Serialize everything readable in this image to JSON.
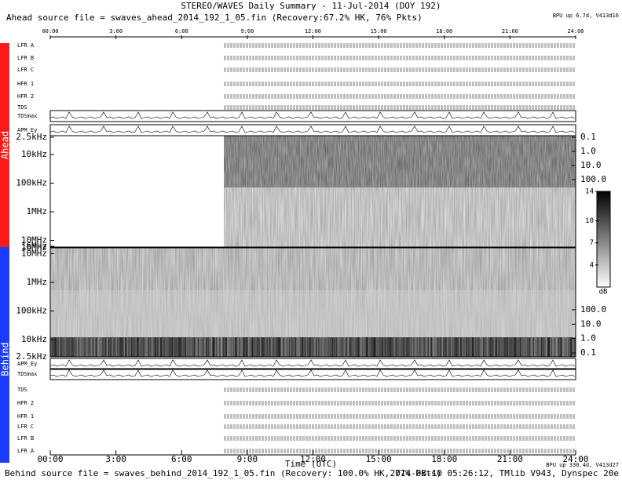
{
  "title": "STEREO/WAVES Daily Summary - 11-Jul-2014 (DOY 192)",
  "ahead_source": "Ahead source file = swaves_ahead_2014_192_1_05.fin (Recovery:67.2% HK, 76% Pkts)",
  "version_top": "BPU up 6.7d, V413d16",
  "behind_source": "Behind source file = swaves_behind_2014_192_1_05.fin (Recovery: 100.0% HK, 77% Pkts)",
  "version_bottom": "BPU up 330.4d, V413d27",
  "footer_right": "2014-08-10 05:26:12, TMlib V943, Dynspec 20e",
  "side_labels": {
    "ahead": "Ahead",
    "behind": "Behind"
  },
  "time_axis": {
    "label": "Time (UTC)",
    "xlim": [
      0,
      24
    ],
    "ticks": [
      {
        "value": 0,
        "label": "00:00"
      },
      {
        "value": 3,
        "label": "3:00"
      },
      {
        "value": 6,
        "label": "6:00"
      },
      {
        "value": 9,
        "label": "9:00"
      },
      {
        "value": 12,
        "label": "12:00"
      },
      {
        "value": 15,
        "label": "15:00"
      },
      {
        "value": 18,
        "label": "18:00"
      },
      {
        "value": 21,
        "label": "21:00"
      },
      {
        "value": 24,
        "label": "24:00"
      }
    ]
  },
  "ahead_rows": [
    "LFR A",
    "LFR B",
    "LFR C",
    "HFR 1",
    "HFR 2",
    "TDS",
    "TDSmax",
    "APM_Ey"
  ],
  "behind_rows": [
    "APM_Ey",
    "TDSmax",
    "TDS",
    "HFR 2",
    "HFR 1",
    "LFR C",
    "LFR B",
    "LFR A"
  ],
  "ahead_spectrogram": {
    "log": true,
    "ylim": [
      2500,
      16000000
    ],
    "yticks": [
      {
        "value": 2500,
        "label": "2.5kHz"
      },
      {
        "value": 10000,
        "label": "10kHz"
      },
      {
        "value": 100000,
        "label": "100kHz"
      },
      {
        "value": 1000000,
        "label": "1MHz"
      },
      {
        "value": 10000000,
        "label": "10MHz"
      },
      {
        "value": 16000000,
        "label": "16MHz"
      }
    ],
    "y2lim": [
      0.1,
      100
    ],
    "y2ticks": [
      {
        "value": 0.1,
        "label": "0.1"
      },
      {
        "value": 1,
        "label": "1.0"
      },
      {
        "value": 10,
        "label": "10.0"
      },
      {
        "value": 100,
        "label": "100.0"
      }
    ]
  },
  "behind_spectrogram": {
    "log": true,
    "ylim": [
      16000000,
      2500
    ],
    "yticks": [
      {
        "value": 16000000,
        "label": "16MHz"
      },
      {
        "value": 10000000,
        "label": "10MHz"
      },
      {
        "value": 1000000,
        "label": "1MHz"
      },
      {
        "value": 100000,
        "label": "100kHz"
      },
      {
        "value": 10000,
        "label": "10kHz"
      },
      {
        "value": 2500,
        "label": "2.5kHz"
      }
    ],
    "y2lim": [
      100,
      0.1
    ],
    "y2ticks": [
      {
        "value": 100,
        "label": "100.0"
      },
      {
        "value": 10,
        "label": "10.0"
      },
      {
        "value": 1,
        "label": "1.0"
      },
      {
        "value": 0.1,
        "label": "0.1"
      }
    ]
  },
  "colorbar": {
    "lim": [
      1,
      14
    ],
    "ticks": [
      14,
      10,
      7,
      4
    ],
    "label": "dB"
  }
}
